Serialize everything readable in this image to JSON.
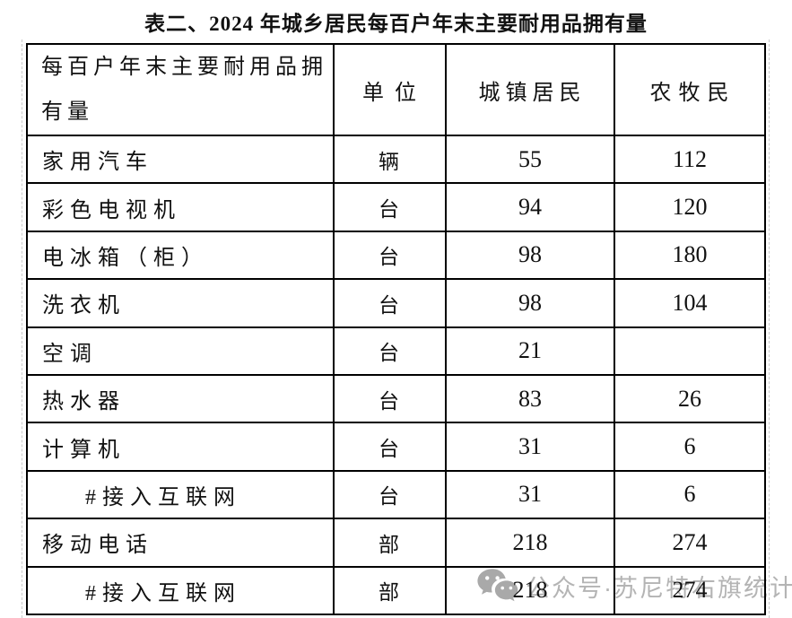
{
  "page": {
    "title": "表二、2024 年城乡居民每百户年末主要耐用品拥有量"
  },
  "table": {
    "columns": [
      "每百户年末主要耐用品拥有量",
      "单位",
      "城镇居民",
      "农牧民"
    ],
    "rows": [
      {
        "item": "家用汽车",
        "unit": "辆",
        "urban": "55",
        "rural": "112",
        "indent": false
      },
      {
        "item": "彩色电视机",
        "unit": "台",
        "urban": "94",
        "rural": "120",
        "indent": false
      },
      {
        "item": "电冰箱（柜）",
        "unit": "台",
        "urban": "98",
        "rural": "180",
        "indent": false
      },
      {
        "item": "洗衣机",
        "unit": "台",
        "urban": "98",
        "rural": "104",
        "indent": false
      },
      {
        "item": "空调",
        "unit": "台",
        "urban": "21",
        "rural": "",
        "indent": false
      },
      {
        "item": "热水器",
        "unit": "台",
        "urban": "83",
        "rural": "26",
        "indent": false
      },
      {
        "item": "计算机",
        "unit": "台",
        "urban": "31",
        "rural": "6",
        "indent": false
      },
      {
        "item": "#接入互联网",
        "unit": "台",
        "urban": "31",
        "rural": "6",
        "indent": true
      },
      {
        "item": "移动电话",
        "unit": "部",
        "urban": "218",
        "rural": "274",
        "indent": false
      },
      {
        "item": "#接入互联网",
        "unit": "部",
        "urban": "218",
        "rural": "274",
        "indent": true
      }
    ]
  },
  "watermark": {
    "icon": "wechat-icon",
    "text": "公众号·苏尼特右旗统计"
  },
  "colors": {
    "text": "#111111",
    "table_border": "#000000",
    "watermark_gray": "#b4b4b4",
    "boundary_dash": "#c9c9c9",
    "background": "#ffffff"
  }
}
